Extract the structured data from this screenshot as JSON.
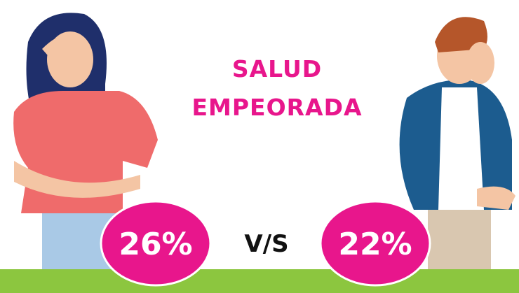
{
  "title_lines": [
    "SALUD",
    "EMPEORADA"
  ],
  "comparison": {
    "left": "26%",
    "separator": "V/S",
    "right": "22%"
  }
}
